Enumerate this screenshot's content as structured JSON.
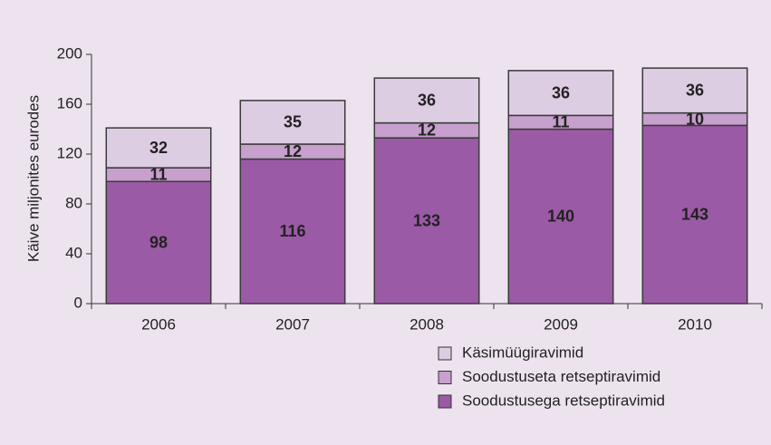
{
  "chart_data": {
    "type": "stacked_bar",
    "y_label": "Käive miljonites eurodes",
    "categories": [
      "2006",
      "2007",
      "2008",
      "2009",
      "2010"
    ],
    "series": [
      {
        "name": "Soodustusega retseptiravimid",
        "color": "#9b5aa5",
        "values": [
          98,
          116,
          133,
          140,
          143
        ]
      },
      {
        "name": "Soodustuseta retseptiravimid",
        "color": "#c7a0cd",
        "values": [
          11,
          12,
          12,
          11,
          10
        ]
      },
      {
        "name": "Käsimüügiravimid",
        "color": "#ddcde3",
        "values": [
          32,
          35,
          36,
          36,
          36
        ]
      }
    ],
    "ylim": [
      0,
      200
    ],
    "yticks": [
      0,
      40,
      80,
      120,
      160,
      200
    ],
    "grid": false
  }
}
